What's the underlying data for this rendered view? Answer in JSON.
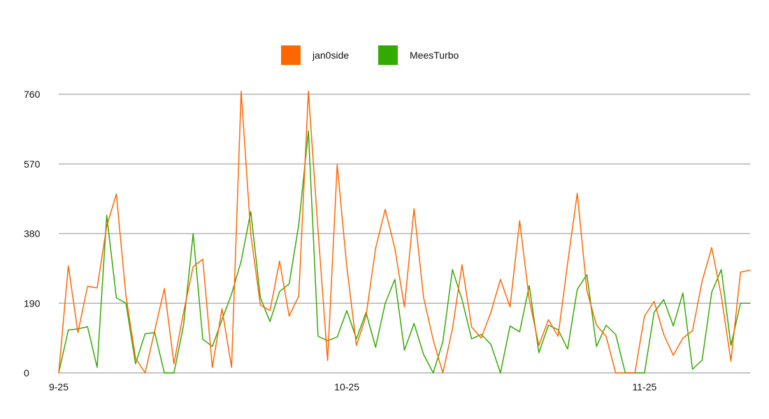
{
  "chart_data": {
    "type": "line",
    "title": "",
    "xlabel": "",
    "ylabel": "",
    "ylim": [
      0,
      760
    ],
    "y_ticks": [
      0,
      190,
      380,
      570,
      760
    ],
    "x_tick_labels": [
      {
        "index": 0,
        "label": "9-25"
      },
      {
        "index": 30,
        "label": "10-25"
      },
      {
        "index": 61,
        "label": "11-25"
      }
    ],
    "x_count": 73,
    "grid": true,
    "legend": {
      "placement": "top-center"
    },
    "series": [
      {
        "name": "jan0side",
        "color": "#ff6600",
        "values": [
          0,
          292,
          110,
          236,
          232,
          400,
          488,
          210,
          40,
          0,
          116,
          230,
          25,
          165,
          290,
          310,
          15,
          175,
          15,
          768,
          378,
          185,
          170,
          305,
          155,
          210,
          768,
          390,
          34,
          568,
          290,
          75,
          155,
          340,
          446,
          340,
          180,
          448,
          205,
          90,
          0,
          120,
          295,
          125,
          95,
          165,
          255,
          180,
          415,
          200,
          75,
          145,
          100,
          300,
          490,
          225,
          130,
          100,
          0,
          0,
          0,
          155,
          195,
          105,
          48,
          95,
          115,
          250,
          342,
          210,
          32,
          275,
          280
        ]
      },
      {
        "name": "MeesTurbo",
        "color": "#33aa00",
        "values": [
          0,
          117,
          120,
          126,
          15,
          430,
          205,
          190,
          25,
          107,
          110,
          0,
          0,
          130,
          380,
          92,
          72,
          145,
          215,
          305,
          440,
          205,
          140,
          222,
          243,
          405,
          660,
          100,
          88,
          98,
          170,
          93,
          165,
          70,
          190,
          255,
          62,
          135,
          50,
          0,
          85,
          282,
          200,
          93,
          105,
          78,
          0,
          128,
          112,
          238,
          55,
          130,
          118,
          65,
          228,
          268,
          72,
          130,
          105,
          0,
          0,
          0,
          165,
          200,
          128,
          218,
          10,
          35,
          220,
          282,
          75,
          190,
          190
        ]
      }
    ]
  }
}
